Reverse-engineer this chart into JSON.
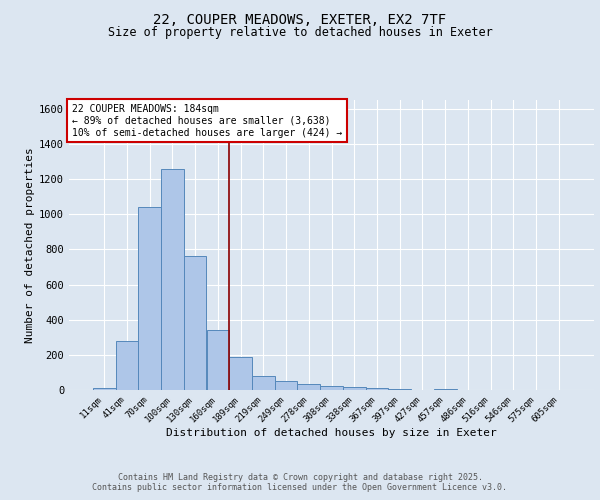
{
  "title_line1": "22, COUPER MEADOWS, EXETER, EX2 7TF",
  "title_line2": "Size of property relative to detached houses in Exeter",
  "xlabel": "Distribution of detached houses by size in Exeter",
  "ylabel": "Number of detached properties",
  "categories": [
    "11sqm",
    "41sqm",
    "70sqm",
    "100sqm",
    "130sqm",
    "160sqm",
    "189sqm",
    "219sqm",
    "249sqm",
    "278sqm",
    "308sqm",
    "338sqm",
    "367sqm",
    "397sqm",
    "427sqm",
    "457sqm",
    "486sqm",
    "516sqm",
    "546sqm",
    "575sqm",
    "605sqm"
  ],
  "values": [
    10,
    280,
    1040,
    1260,
    760,
    340,
    185,
    80,
    50,
    35,
    25,
    15,
    10,
    5,
    2,
    5,
    2,
    1,
    1,
    1,
    0
  ],
  "bar_color": "#aec6e8",
  "bar_edge_color": "#5588bb",
  "background_color": "#dce6f1",
  "plot_bg_color": "#dce6f1",
  "grid_color": "#ffffff",
  "red_line_index": 6,
  "red_line_color": "#8b0000",
  "annotation_text": "22 COUPER MEADOWS: 184sqm\n← 89% of detached houses are smaller (3,638)\n10% of semi-detached houses are larger (424) →",
  "annotation_box_edge": "#cc0000",
  "footer_line1": "Contains HM Land Registry data © Crown copyright and database right 2025.",
  "footer_line2": "Contains public sector information licensed under the Open Government Licence v3.0.",
  "ylim": [
    0,
    1650
  ],
  "yticks": [
    0,
    200,
    400,
    600,
    800,
    1000,
    1200,
    1400,
    1600
  ],
  "figsize": [
    6.0,
    5.0
  ],
  "dpi": 100
}
